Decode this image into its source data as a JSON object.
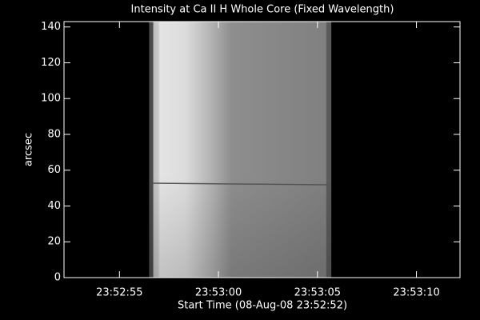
{
  "chart_data": {
    "type": "image",
    "title": "Intensity at Ca II H Whole Core (Fixed Wavelength)",
    "xlabel": "Start Time (08-Aug-08 23:52:52)",
    "ylabel": "arcsec",
    "xlim": [
      0.2,
      20.2
    ],
    "xticks": [
      {
        "value": 3,
        "label": "23:52:55"
      },
      {
        "value": 8,
        "label": "23:53:00"
      },
      {
        "value": 13,
        "label": "23:53:05"
      },
      {
        "value": 18,
        "label": "23:53:10"
      }
    ],
    "ylim": [
      0,
      143
    ],
    "yticks": [
      0,
      20,
      40,
      60,
      80,
      100,
      120,
      140
    ],
    "image_xlim": [
      4.5,
      13.7
    ],
    "background": "#000000",
    "axis_color": "#ffffff"
  }
}
